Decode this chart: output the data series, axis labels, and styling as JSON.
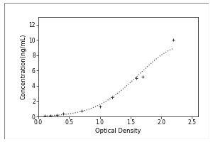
{
  "x_data": [
    0.1,
    0.2,
    0.3,
    0.4,
    0.7,
    1.0,
    1.2,
    1.6,
    1.7,
    2.2
  ],
  "y_data": [
    0.05,
    0.1,
    0.2,
    0.35,
    0.7,
    1.3,
    2.5,
    5.0,
    5.2,
    10.0
  ],
  "xlim": [
    0,
    2.6
  ],
  "ylim": [
    0,
    13
  ],
  "xlabel": "Optical Density",
  "ylabel": "Concentration(ng/mL)",
  "xticks": [
    0,
    0.5,
    1.0,
    1.5,
    2.0,
    2.5
  ],
  "yticks": [
    0,
    2,
    4,
    6,
    8,
    10,
    12
  ],
  "line_color": "#555555",
  "marker_color": "#333333",
  "background_color": "#ffffff",
  "axis_fontsize": 6.0,
  "tick_fontsize": 5.5,
  "outer_border_color": "#aaaaaa"
}
